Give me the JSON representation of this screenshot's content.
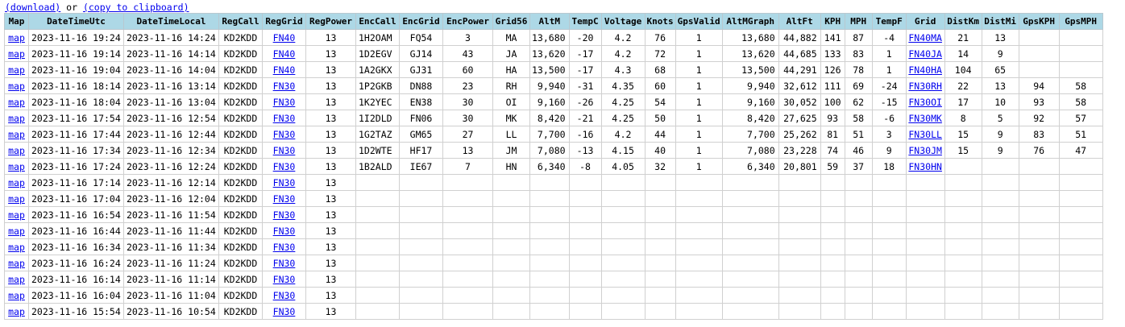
{
  "links": {
    "download": "(download)",
    "or": " or ",
    "copy": "(copy to clipboard)"
  },
  "columns": [
    "Map",
    "DateTimeUtc",
    "DateTimeLocal",
    "RegCall",
    "RegGrid",
    "RegPower",
    "EncCall",
    "EncGrid",
    "EncPower",
    "Grid56",
    "AltM",
    "TempC",
    "Voltage",
    "Knots",
    "GpsValid",
    "AltMGraph",
    "AltFt",
    "KPH",
    "MPH",
    "TempF",
    "Grid",
    "DistKm",
    "DistMi",
    "GpsKPH",
    "GpsMPH"
  ],
  "rows": [
    [
      "map",
      "2023-11-16 19:24",
      "2023-11-16 14:24",
      "KD2KDD",
      "FN40",
      "13",
      "1H2OAM",
      "FQ54",
      "3",
      "MA",
      "13,680",
      "-20",
      "4.2",
      "76",
      "1",
      "13,680",
      "44,882",
      "141",
      "87",
      "-4",
      "FN40MA",
      "21",
      "13",
      "",
      ""
    ],
    [
      "map",
      "2023-11-16 19:14",
      "2023-11-16 14:14",
      "KD2KDD",
      "FN40",
      "13",
      "1D2EGV",
      "GJ14",
      "43",
      "JA",
      "13,620",
      "-17",
      "4.2",
      "72",
      "1",
      "13,620",
      "44,685",
      "133",
      "83",
      "1",
      "FN40JA",
      "14",
      "9",
      "",
      ""
    ],
    [
      "map",
      "2023-11-16 19:04",
      "2023-11-16 14:04",
      "KD2KDD",
      "FN40",
      "13",
      "1A2GKX",
      "GJ31",
      "60",
      "HA",
      "13,500",
      "-17",
      "4.3",
      "68",
      "1",
      "13,500",
      "44,291",
      "126",
      "78",
      "1",
      "FN40HA",
      "104",
      "65",
      "",
      ""
    ],
    [
      "map",
      "2023-11-16 18:14",
      "2023-11-16 13:14",
      "KD2KDD",
      "FN30",
      "13",
      "1P2GKB",
      "DN88",
      "23",
      "RH",
      "9,940",
      "-31",
      "4.35",
      "60",
      "1",
      "9,940",
      "32,612",
      "111",
      "69",
      "-24",
      "FN30RH",
      "22",
      "13",
      "94",
      "58"
    ],
    [
      "map",
      "2023-11-16 18:04",
      "2023-11-16 13:04",
      "KD2KDD",
      "FN30",
      "13",
      "1K2YEC",
      "EN38",
      "30",
      "OI",
      "9,160",
      "-26",
      "4.25",
      "54",
      "1",
      "9,160",
      "30,052",
      "100",
      "62",
      "-15",
      "FN30OI",
      "17",
      "10",
      "93",
      "58"
    ],
    [
      "map",
      "2023-11-16 17:54",
      "2023-11-16 12:54",
      "KD2KDD",
      "FN30",
      "13",
      "1I2DLD",
      "FN06",
      "30",
      "MK",
      "8,420",
      "-21",
      "4.25",
      "50",
      "1",
      "8,420",
      "27,625",
      "93",
      "58",
      "-6",
      "FN30MK",
      "8",
      "5",
      "92",
      "57"
    ],
    [
      "map",
      "2023-11-16 17:44",
      "2023-11-16 12:44",
      "KD2KDD",
      "FN30",
      "13",
      "1G2TAZ",
      "GM65",
      "27",
      "LL",
      "7,700",
      "-16",
      "4.2",
      "44",
      "1",
      "7,700",
      "25,262",
      "81",
      "51",
      "3",
      "FN30LL",
      "15",
      "9",
      "83",
      "51"
    ],
    [
      "map",
      "2023-11-16 17:34",
      "2023-11-16 12:34",
      "KD2KDD",
      "FN30",
      "13",
      "1D2WTE",
      "HF17",
      "13",
      "JM",
      "7,080",
      "-13",
      "4.15",
      "40",
      "1",
      "7,080",
      "23,228",
      "74",
      "46",
      "9",
      "FN30JM",
      "15",
      "9",
      "76",
      "47"
    ],
    [
      "map",
      "2023-11-16 17:24",
      "2023-11-16 12:24",
      "KD2KDD",
      "FN30",
      "13",
      "1B2ALD",
      "IE67",
      "7",
      "HN",
      "6,340",
      "-8",
      "4.05",
      "32",
      "1",
      "6,340",
      "20,801",
      "59",
      "37",
      "18",
      "FN30HN",
      "",
      "",
      "",
      ""
    ],
    [
      "map",
      "2023-11-16 17:14",
      "2023-11-16 12:14",
      "KD2KDD",
      "FN30",
      "13",
      "",
      "",
      "",
      "",
      "",
      "",
      "",
      "",
      "",
      "",
      "",
      "",
      "",
      "",
      "",
      "",
      "",
      "",
      ""
    ],
    [
      "map",
      "2023-11-16 17:04",
      "2023-11-16 12:04",
      "KD2KDD",
      "FN30",
      "13",
      "",
      "",
      "",
      "",
      "",
      "",
      "",
      "",
      "",
      "",
      "",
      "",
      "",
      "",
      "",
      "",
      "",
      "",
      ""
    ],
    [
      "map",
      "2023-11-16 16:54",
      "2023-11-16 11:54",
      "KD2KDD",
      "FN30",
      "13",
      "",
      "",
      "",
      "",
      "",
      "",
      "",
      "",
      "",
      "",
      "",
      "",
      "",
      "",
      "",
      "",
      "",
      "",
      ""
    ],
    [
      "map",
      "2023-11-16 16:44",
      "2023-11-16 11:44",
      "KD2KDD",
      "FN30",
      "13",
      "",
      "",
      "",
      "",
      "",
      "",
      "",
      "",
      "",
      "",
      "",
      "",
      "",
      "",
      "",
      "",
      "",
      "",
      ""
    ],
    [
      "map",
      "2023-11-16 16:34",
      "2023-11-16 11:34",
      "KD2KDD",
      "FN30",
      "13",
      "",
      "",
      "",
      "",
      "",
      "",
      "",
      "",
      "",
      "",
      "",
      "",
      "",
      "",
      "",
      "",
      "",
      "",
      ""
    ],
    [
      "map",
      "2023-11-16 16:24",
      "2023-11-16 11:24",
      "KD2KDD",
      "FN30",
      "13",
      "",
      "",
      "",
      "",
      "",
      "",
      "",
      "",
      "",
      "",
      "",
      "",
      "",
      "",
      "",
      "",
      "",
      "",
      ""
    ],
    [
      "map",
      "2023-11-16 16:14",
      "2023-11-16 11:14",
      "KD2KDD",
      "FN30",
      "13",
      "",
      "",
      "",
      "",
      "",
      "",
      "",
      "",
      "",
      "",
      "",
      "",
      "",
      "",
      "",
      "",
      "",
      "",
      ""
    ],
    [
      "map",
      "2023-11-16 16:04",
      "2023-11-16 11:04",
      "KD2KDD",
      "FN30",
      "13",
      "",
      "",
      "",
      "",
      "",
      "",
      "",
      "",
      "",
      "",
      "",
      "",
      "",
      "",
      "",
      "",
      "",
      "",
      ""
    ],
    [
      "map",
      "2023-11-16 15:54",
      "2023-11-16 10:54",
      "KD2KDD",
      "FN30",
      "13",
      "",
      "",
      "",
      "",
      "",
      "",
      "",
      "",
      "",
      "",
      "",
      "",
      "",
      "",
      "",
      "",
      "",
      "",
      ""
    ]
  ]
}
